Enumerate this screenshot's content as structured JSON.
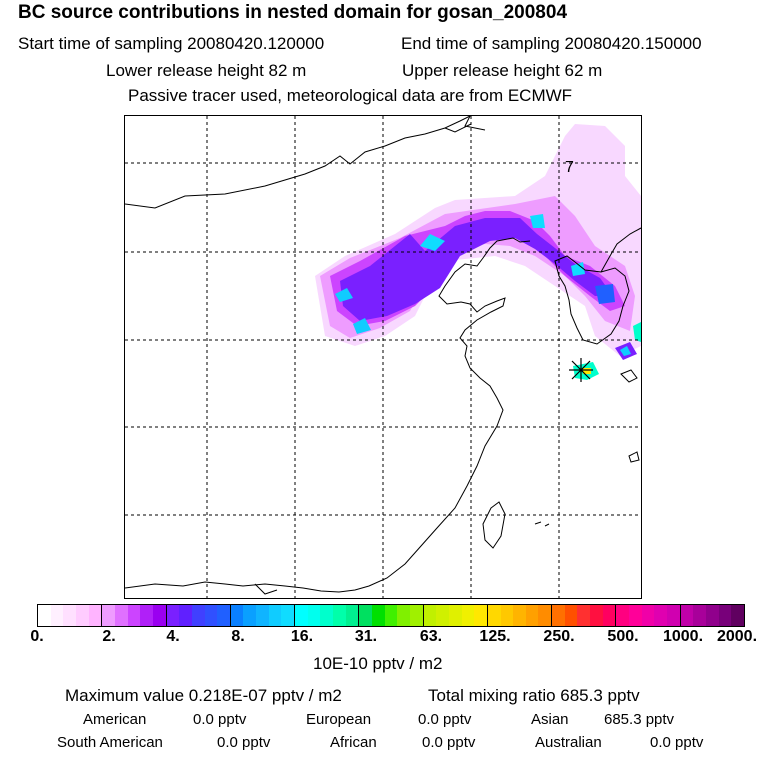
{
  "header": {
    "title": "BC  source contributions in nested domain for gosan_200804",
    "start_time": "Start time of sampling 20080420.120000",
    "end_time": "End time of sampling 20080420.150000",
    "lower_release": "Lower release height   82 m",
    "upper_release": "Upper release height   62 m",
    "model_info": "Passive tracer used, meteorological data are from ECMWF"
  },
  "map": {
    "marker_label": "7",
    "receptor": "star-marker"
  },
  "colorbar": {
    "tick_labels": [
      "0.",
      "2.",
      "4.",
      "8.",
      "16.",
      "31.",
      "63.",
      "125.",
      "250.",
      "500.",
      "1000.",
      "2000."
    ],
    "units": "10E-10 pptv / m2",
    "colors": [
      [
        "#ffffff",
        "#fff0ff",
        "#ffe0ff",
        "#ffccff",
        "#ffb4ff"
      ],
      [
        "#ef9cff",
        "#e070ff",
        "#cc44ff",
        "#b020f8",
        "#9a00f0"
      ],
      [
        "#7a20ff",
        "#6020ff",
        "#4040ff",
        "#3050ff",
        "#2060ff"
      ],
      [
        "#0a80ff",
        "#0aa0ff",
        "#10b4ff",
        "#10ccff",
        "#10dcff"
      ],
      [
        "#00ffff",
        "#00ffee",
        "#00ffcc",
        "#00ffaa",
        "#00f090"
      ],
      [
        "#00e060",
        "#00e000",
        "#40f000",
        "#80f000",
        "#a0f000"
      ],
      [
        "#c0f000",
        "#d0f000",
        "#e0f000",
        "#f0f000",
        "#ffe800"
      ],
      [
        "#ffd800",
        "#ffc800",
        "#ffb400",
        "#ffa000",
        "#ff8c00"
      ],
      [
        "#ff7000",
        "#ff5000",
        "#ff3030",
        "#ff1040",
        "#ff0060"
      ],
      [
        "#ff0080",
        "#ff0099",
        "#f000a8",
        "#e000b0",
        "#d000b0"
      ],
      [
        "#c000a8",
        "#a8009a",
        "#90008c",
        "#78007a",
        "#600060"
      ]
    ]
  },
  "footer": {
    "max_value": "Maximum value  0.218E-07 pptv / m2",
    "total_mixing": "Total mixing ratio      685.3 pptv",
    "american": "American",
    "american_val": "0.0 pptv",
    "european": "European",
    "european_val": "0.0 pptv",
    "asian": "Asian",
    "asian_val": "685.3 pptv",
    "south_american": "South American",
    "south_american_val": "0.0 pptv",
    "african": "African",
    "african_val": "0.0 pptv",
    "australian": "Australian",
    "australian_val": "0.0 pptv"
  }
}
